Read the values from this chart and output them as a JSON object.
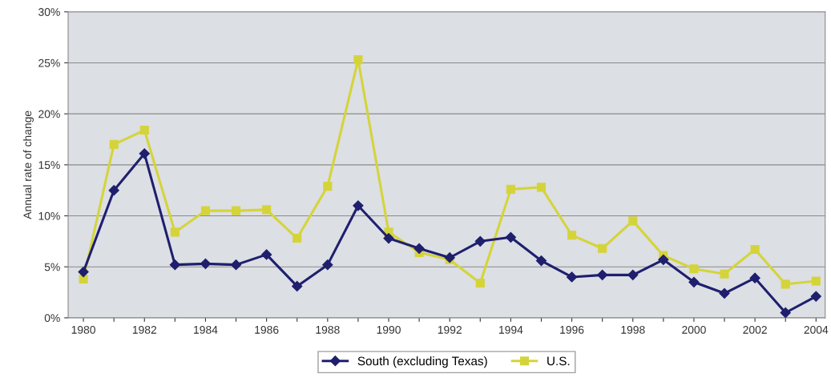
{
  "chart_data": {
    "type": "line",
    "ylabel": "Annual rate of change",
    "x": [
      1980,
      1981,
      1982,
      1983,
      1984,
      1985,
      1986,
      1987,
      1988,
      1989,
      1990,
      1991,
      1992,
      1993,
      1994,
      1995,
      1996,
      1997,
      1998,
      1999,
      2000,
      2001,
      2002,
      2003,
      2004
    ],
    "series": [
      {
        "name": "South (excluding Texas)",
        "color": "#1f1f6e",
        "marker": "diamond",
        "values": [
          4.5,
          12.5,
          16.1,
          5.2,
          5.3,
          5.2,
          6.2,
          3.1,
          5.2,
          11.0,
          7.8,
          6.8,
          5.9,
          7.5,
          7.9,
          5.6,
          4.0,
          4.2,
          4.2,
          5.7,
          3.5,
          2.4,
          3.9,
          0.5,
          2.1
        ]
      },
      {
        "name": "U.S.",
        "color": "#d4d43a",
        "marker": "square",
        "values": [
          3.8,
          17.0,
          18.4,
          8.4,
          10.5,
          10.5,
          10.6,
          7.8,
          12.9,
          25.3,
          8.4,
          6.4,
          5.7,
          3.4,
          12.6,
          12.8,
          8.1,
          6.8,
          9.5,
          6.1,
          4.8,
          4.3,
          6.7,
          3.3,
          3.6
        ]
      }
    ],
    "xlim": [
      1979.5,
      2004.3
    ],
    "xticks": [
      1980,
      {
        "value": 1981,
        "label": null
      },
      1982,
      {
        "value": 1983,
        "label": null
      },
      1984,
      {
        "value": 1985,
        "label": null
      },
      1986,
      {
        "value": 1987,
        "label": null
      },
      1988,
      {
        "value": 1989,
        "label": null
      },
      1990,
      {
        "value": 1991,
        "label": null
      },
      1992,
      {
        "value": 1993,
        "label": null
      },
      1994,
      {
        "value": 1995,
        "label": null
      },
      1996,
      {
        "value": 1997,
        "label": null
      },
      1998,
      {
        "value": 1999,
        "label": null
      },
      2000,
      {
        "value": 2001,
        "label": null
      },
      2002,
      {
        "value": 2003,
        "label": null
      },
      2004
    ],
    "ylim": [
      0,
      30
    ],
    "yticks": [
      {
        "value": 0,
        "label": "0%"
      },
      {
        "value": 5,
        "label": "5%"
      },
      {
        "value": 10,
        "label": "10%"
      },
      {
        "value": 15,
        "label": "15%"
      },
      {
        "value": 20,
        "label": "20%"
      },
      {
        "value": 25,
        "label": "25%"
      },
      {
        "value": 30,
        "label": "30%"
      }
    ],
    "grid": "y",
    "legend": "bottom",
    "line_style": "solid"
  }
}
